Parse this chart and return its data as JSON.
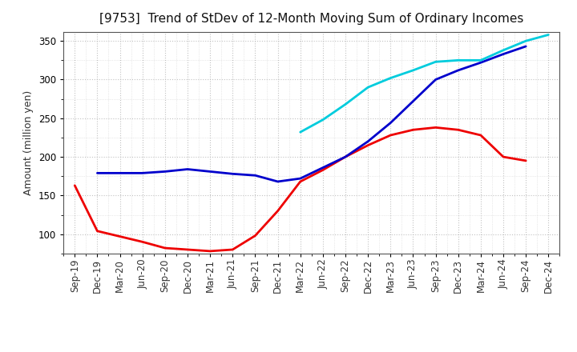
{
  "title": "[9753]  Trend of StDev of 12-Month Moving Sum of Ordinary Incomes",
  "ylabel": "Amount (million yen)",
  "background_color": "#ffffff",
  "grid_color": "#bbbbbb",
  "ylim": [
    75,
    362
  ],
  "yticks": [
    100,
    150,
    200,
    250,
    300,
    350
  ],
  "x_labels": [
    "Sep-19",
    "Dec-19",
    "Mar-20",
    "Jun-20",
    "Sep-20",
    "Dec-20",
    "Mar-21",
    "Jun-21",
    "Sep-21",
    "Dec-21",
    "Mar-22",
    "Jun-22",
    "Sep-22",
    "Dec-22",
    "Mar-23",
    "Jun-23",
    "Sep-23",
    "Dec-23",
    "Mar-24",
    "Jun-24",
    "Sep-24",
    "Dec-24"
  ],
  "series": {
    "3years": {
      "color": "#ee0000",
      "data": [
        163,
        104,
        97,
        90,
        82,
        80,
        78,
        80,
        98,
        130,
        168,
        183,
        200,
        215,
        228,
        235,
        238,
        235,
        228,
        200,
        195,
        null
      ]
    },
    "5years": {
      "color": "#0000cc",
      "data": [
        null,
        179,
        179,
        179,
        181,
        184,
        181,
        178,
        176,
        168,
        172,
        186,
        200,
        220,
        244,
        272,
        300,
        312,
        322,
        333,
        343,
        null
      ]
    },
    "7years": {
      "color": "#00ccdd",
      "data": [
        null,
        null,
        null,
        null,
        null,
        null,
        null,
        null,
        null,
        null,
        232,
        248,
        268,
        290,
        302,
        312,
        323,
        325,
        325,
        338,
        350,
        358
      ]
    },
    "10years": {
      "color": "#008800",
      "data": [
        null,
        null,
        null,
        null,
        null,
        null,
        null,
        null,
        null,
        null,
        null,
        null,
        null,
        null,
        null,
        null,
        null,
        null,
        null,
        null,
        null,
        null
      ]
    }
  },
  "title_fontsize": 11,
  "ylabel_fontsize": 9,
  "tick_fontsize": 8.5,
  "legend_fontsize": 9,
  "linewidth": 2.0
}
